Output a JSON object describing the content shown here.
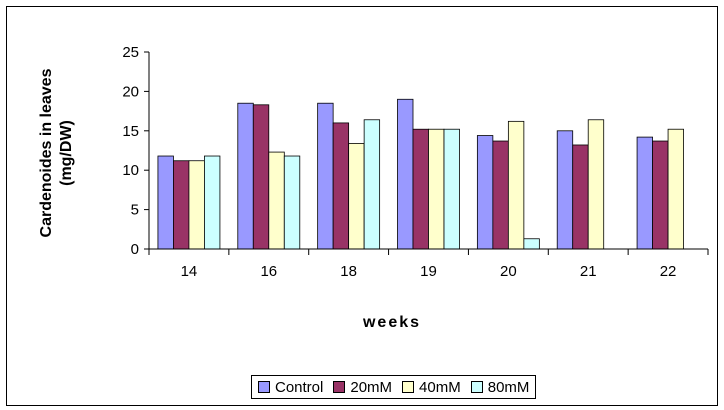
{
  "chart_data": {
    "type": "bar",
    "title": "",
    "xlabel": "weeks",
    "ylabel_line1": "Cardenoides in leaves",
    "ylabel_line2": "(mg/DW)",
    "ylim": [
      0,
      25
    ],
    "yticks": [
      0,
      5,
      10,
      15,
      20,
      25
    ],
    "categories": [
      "14",
      "16",
      "18",
      "19",
      "20",
      "21",
      "22"
    ],
    "series": [
      {
        "name": "Control",
        "color": "#9999ff",
        "values": [
          11.8,
          18.5,
          18.5,
          19.0,
          14.4,
          15.0,
          14.2
        ]
      },
      {
        "name": "20mM",
        "color": "#993366",
        "values": [
          11.2,
          18.3,
          16.0,
          15.2,
          13.7,
          13.2,
          13.7
        ]
      },
      {
        "name": "40mM",
        "color": "#ffffcc",
        "values": [
          11.2,
          12.3,
          13.4,
          15.2,
          16.2,
          16.4,
          15.2
        ]
      },
      {
        "name": "80mM",
        "color": "#ccffff",
        "values": [
          11.8,
          11.8,
          16.4,
          15.2,
          1.3,
          null,
          null
        ]
      }
    ],
    "legend_position": "bottom",
    "grid": false
  }
}
